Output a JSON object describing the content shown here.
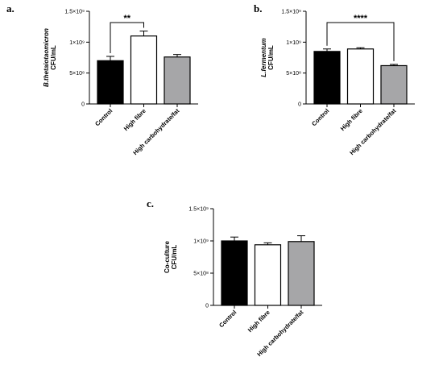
{
  "colors": {
    "Control": "#000000",
    "High fibre": "#ffffff",
    "High carbohydrate/fat": "#a6a6a8"
  },
  "chart_data": [
    {
      "type": "bar",
      "panel": "a.",
      "ylabel_species": "B.thetaiotaomicron",
      "ylabel_unit": "CFU/mL",
      "categories": [
        "Control",
        "High fibre",
        "High carbohydrate/fat"
      ],
      "values": [
        700000000,
        1100000000,
        760000000
      ],
      "errors": [
        70000000,
        80000000,
        40000000
      ],
      "ylim": [
        0,
        1500000000
      ],
      "yticks": [
        {
          "value": 0,
          "label": "0"
        },
        {
          "value": 500000000,
          "label": "5×10⁸"
        },
        {
          "value": 1000000000,
          "label": "1×10⁹"
        },
        {
          "value": 1500000000,
          "label": "1.5×10⁹"
        }
      ],
      "significance": {
        "from": 0,
        "to": 1,
        "label": "**"
      },
      "grid": false
    },
    {
      "type": "bar",
      "panel": "b.",
      "ylabel_species": "L.fermentum",
      "ylabel_unit": "CFU/mL",
      "categories": [
        "Control",
        "High fibre",
        "High carbohydrate/fat"
      ],
      "values": [
        850000000,
        890000000,
        620000000
      ],
      "errors": [
        40000000,
        20000000,
        20000000
      ],
      "ylim": [
        0,
        1500000000
      ],
      "yticks": [
        {
          "value": 0,
          "label": "0"
        },
        {
          "value": 500000000,
          "label": "5×10⁸"
        },
        {
          "value": 1000000000,
          "label": "1×10⁹"
        },
        {
          "value": 1500000000,
          "label": "1.5×10⁹"
        }
      ],
      "significance": {
        "from": 0,
        "to": 2,
        "label": "****"
      },
      "grid": false
    },
    {
      "type": "bar",
      "panel": "c.",
      "ylabel_species": "Co-culture",
      "ylabel_unit": "CFU/mL",
      "categories": [
        "Control",
        "High fibre",
        "High carbohydrate/fat"
      ],
      "values": [
        1000000000,
        940000000,
        990000000
      ],
      "errors": [
        60000000,
        30000000,
        90000000
      ],
      "ylim": [
        0,
        1500000000
      ],
      "yticks": [
        {
          "value": 0,
          "label": "0"
        },
        {
          "value": 500000000,
          "label": "5×10⁸"
        },
        {
          "value": 1000000000,
          "label": "1×10⁹"
        },
        {
          "value": 1500000000,
          "label": "1.5×10⁹"
        }
      ],
      "significance": null,
      "grid": false
    }
  ]
}
